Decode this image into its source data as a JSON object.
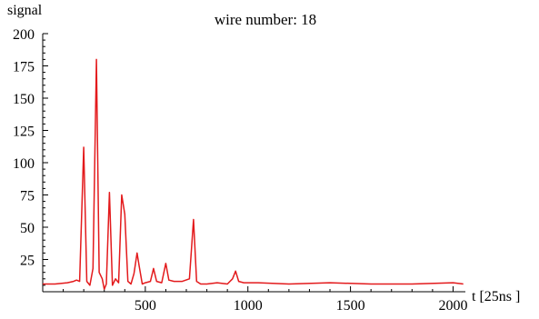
{
  "chart_data": {
    "type": "line",
    "title": "wire number: 18",
    "xlabel": "t  [25ns ]",
    "ylabel": "signal",
    "xlim": [
      0,
      2060
    ],
    "ylim": [
      0,
      200
    ],
    "x_ticks": [
      500,
      1000,
      1500,
      2000
    ],
    "y_ticks": [
      25,
      50,
      75,
      100,
      125,
      150,
      175,
      200
    ],
    "x_tick_labels": [
      "500",
      "1000",
      "1500",
      "2000"
    ],
    "y_tick_labels": [
      "25",
      "50",
      "75",
      "100",
      "125",
      "150",
      "175",
      "200"
    ],
    "grid": false,
    "legend": "none",
    "series": [
      {
        "color": "#e31a1c",
        "x": [
          0,
          60,
          120,
          150,
          165,
          180,
          200,
          215,
          230,
          245,
          262,
          275,
          290,
          300,
          310,
          325,
          340,
          355,
          370,
          385,
          400,
          415,
          430,
          445,
          460,
          470,
          485,
          500,
          525,
          540,
          555,
          580,
          600,
          615,
          640,
          680,
          715,
          735,
          750,
          770,
          800,
          850,
          900,
          925,
          940,
          955,
          980,
          1050,
          1200,
          1400,
          1600,
          1800,
          2000,
          2050
        ],
        "y": [
          6,
          6,
          7,
          8,
          9,
          8,
          112,
          8,
          5,
          18,
          180,
          15,
          10,
          2,
          6,
          77,
          5,
          10,
          7,
          75,
          60,
          8,
          6,
          14,
          30,
          20,
          6,
          7,
          8,
          18,
          8,
          7,
          22,
          9,
          8,
          8,
          10,
          56,
          8,
          6,
          6,
          7,
          6,
          10,
          16,
          8,
          7,
          7,
          6,
          7,
          6,
          6,
          7,
          6
        ]
      }
    ]
  }
}
